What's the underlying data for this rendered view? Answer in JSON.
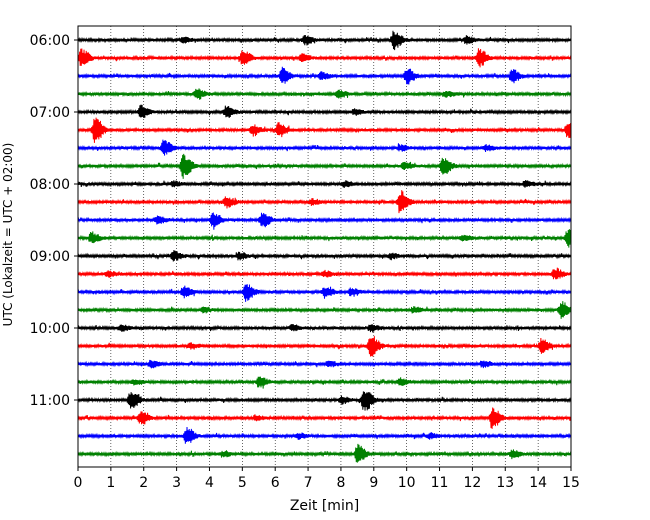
{
  "chart_data": {
    "type": "line",
    "title": "",
    "xlabel": "Zeit  [min]",
    "ylabel": "UTC (Lokalzeit = UTC + 02:00)",
    "xlim": [
      0,
      15
    ],
    "x_ticks": [
      "0",
      "1",
      "2",
      "3",
      "4",
      "5",
      "6",
      "7",
      "8",
      "9",
      "10",
      "11",
      "12",
      "13",
      "14",
      "15"
    ],
    "y_ticks": [
      "06:00",
      "07:00",
      "08:00",
      "09:00",
      "10:00",
      "11:00"
    ],
    "grid": "vertical dotted",
    "legend": "none",
    "series_colors": [
      "#000000",
      "#ff0000",
      "#0000ff",
      "#008000"
    ],
    "series": [
      {
        "row_start": "06:00",
        "color": "#000000",
        "events": [
          [
            9.6,
            1.0
          ],
          [
            6.9,
            0.5
          ],
          [
            11.8,
            0.4
          ],
          [
            3.2,
            0.3
          ]
        ]
      },
      {
        "row_start": "06:15",
        "color": "#ff0000",
        "events": [
          [
            0.1,
            1.0
          ],
          [
            5.0,
            0.9
          ],
          [
            12.2,
            1.0
          ],
          [
            6.8,
            0.4
          ]
        ]
      },
      {
        "row_start": "06:30",
        "color": "#0000ff",
        "events": [
          [
            6.2,
            0.9
          ],
          [
            10.0,
            0.8
          ],
          [
            13.2,
            0.7
          ],
          [
            7.4,
            0.4
          ]
        ]
      },
      {
        "row_start": "06:45",
        "color": "#008000",
        "events": [
          [
            3.6,
            0.6
          ],
          [
            7.9,
            0.4
          ],
          [
            11.2,
            0.3
          ]
        ]
      },
      {
        "row_start": "07:00",
        "color": "#000000",
        "events": [
          [
            1.9,
            0.7
          ],
          [
            4.5,
            0.6
          ],
          [
            8.4,
            0.3
          ]
        ]
      },
      {
        "row_start": "07:15",
        "color": "#ff0000",
        "events": [
          [
            0.5,
            1.4
          ],
          [
            6.1,
            0.8
          ],
          [
            5.3,
            0.6
          ],
          [
            14.9,
            1.0
          ]
        ]
      },
      {
        "row_start": "07:30",
        "color": "#0000ff",
        "events": [
          [
            2.6,
            0.9
          ],
          [
            9.8,
            0.3
          ],
          [
            12.4,
            0.3
          ]
        ]
      },
      {
        "row_start": "07:45",
        "color": "#008000",
        "events": [
          [
            3.2,
            1.3
          ],
          [
            11.1,
            1.0
          ],
          [
            9.9,
            0.4
          ]
        ]
      },
      {
        "row_start": "08:00",
        "color": "#000000",
        "events": [
          [
            2.9,
            0.3
          ],
          [
            8.1,
            0.3
          ],
          [
            13.6,
            0.3
          ]
        ]
      },
      {
        "row_start": "08:15",
        "color": "#ff0000",
        "events": [
          [
            9.8,
            1.2
          ],
          [
            4.5,
            0.6
          ],
          [
            7.1,
            0.3
          ]
        ]
      },
      {
        "row_start": "08:30",
        "color": "#0000ff",
        "events": [
          [
            4.1,
            0.8
          ],
          [
            5.6,
            0.8
          ],
          [
            2.4,
            0.4
          ]
        ]
      },
      {
        "row_start": "08:45",
        "color": "#008000",
        "events": [
          [
            0.4,
            0.6
          ],
          [
            14.9,
            1.0
          ],
          [
            11.7,
            0.3
          ]
        ]
      },
      {
        "row_start": "09:00",
        "color": "#000000",
        "events": [
          [
            2.9,
            0.5
          ],
          [
            4.9,
            0.4
          ],
          [
            9.5,
            0.3
          ]
        ]
      },
      {
        "row_start": "09:15",
        "color": "#ff0000",
        "events": [
          [
            14.5,
            0.6
          ],
          [
            0.9,
            0.3
          ],
          [
            7.5,
            0.3
          ]
        ]
      },
      {
        "row_start": "09:30",
        "color": "#0000ff",
        "events": [
          [
            5.1,
            1.0
          ],
          [
            3.2,
            0.6
          ],
          [
            7.5,
            0.6
          ],
          [
            8.3,
            0.4
          ]
        ]
      },
      {
        "row_start": "09:45",
        "color": "#008000",
        "events": [
          [
            14.7,
            0.9
          ],
          [
            3.8,
            0.3
          ],
          [
            10.2,
            0.3
          ]
        ]
      },
      {
        "row_start": "10:00",
        "color": "#000000",
        "events": [
          [
            8.9,
            0.4
          ],
          [
            1.3,
            0.3
          ],
          [
            6.5,
            0.3
          ]
        ]
      },
      {
        "row_start": "10:15",
        "color": "#ff0000",
        "events": [
          [
            8.9,
            1.2
          ],
          [
            14.1,
            0.8
          ],
          [
            3.4,
            0.3
          ]
        ]
      },
      {
        "row_start": "10:30",
        "color": "#0000ff",
        "events": [
          [
            2.2,
            0.4
          ],
          [
            12.3,
            0.4
          ],
          [
            7.6,
            0.3
          ]
        ]
      },
      {
        "row_start": "10:45",
        "color": "#008000",
        "events": [
          [
            5.5,
            0.6
          ],
          [
            9.8,
            0.4
          ],
          [
            1.7,
            0.3
          ]
        ]
      },
      {
        "row_start": "11:00",
        "color": "#000000",
        "events": [
          [
            8.7,
            1.3
          ],
          [
            1.6,
            1.1
          ],
          [
            8.0,
            0.4
          ]
        ]
      },
      {
        "row_start": "11:15",
        "color": "#ff0000",
        "events": [
          [
            12.6,
            1.2
          ],
          [
            1.9,
            0.7
          ],
          [
            5.4,
            0.3
          ]
        ]
      },
      {
        "row_start": "11:30",
        "color": "#0000ff",
        "events": [
          [
            3.3,
            0.9
          ],
          [
            10.7,
            0.3
          ],
          [
            6.7,
            0.3
          ]
        ]
      },
      {
        "row_start": "11:45",
        "color": "#008000",
        "events": [
          [
            8.5,
            1.0
          ],
          [
            13.2,
            0.4
          ],
          [
            4.4,
            0.3
          ]
        ]
      }
    ]
  }
}
